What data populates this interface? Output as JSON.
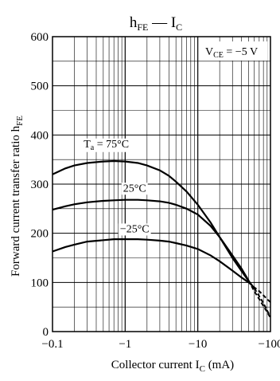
{
  "chart_data": {
    "type": "line",
    "title": {
      "main": "h",
      "main_sub": "FE",
      "dash": "—",
      "second": "I",
      "second_sub": "C"
    },
    "xlabel": {
      "prefix": "Collector current",
      "symbol": "I",
      "sub": "C",
      "unit": "(mA)"
    },
    "ylabel": {
      "main": "Forward current transfer ratio",
      "symbol": "h",
      "sub": "FE"
    },
    "x_scale": "log",
    "xlim": [
      0.1,
      100
    ],
    "ylim": [
      0,
      600
    ],
    "x_ticks": [
      {
        "value": 0.1,
        "label": "−0.1"
      },
      {
        "value": 1,
        "label": "−1"
      },
      {
        "value": 10,
        "label": "−10"
      },
      {
        "value": 100,
        "label": "−100"
      }
    ],
    "y_ticks": [
      {
        "value": 0,
        "label": "0"
      },
      {
        "value": 100,
        "label": "100"
      },
      {
        "value": 200,
        "label": "200"
      },
      {
        "value": 300,
        "label": "300"
      },
      {
        "value": 400,
        "label": "400"
      },
      {
        "value": 500,
        "label": "500"
      },
      {
        "value": 600,
        "label": "600"
      }
    ],
    "grid": true,
    "condition": {
      "symbol": "V",
      "sub": "CE",
      "value": "= −5 V"
    },
    "series": [
      {
        "name": "T_a = 75°C",
        "label": {
          "symbol": "T",
          "sub": "a",
          "value": "= 75°C"
        },
        "points": [
          [
            0.1,
            320
          ],
          [
            0.15,
            332
          ],
          [
            0.2,
            338
          ],
          [
            0.3,
            343
          ],
          [
            0.5,
            346
          ],
          [
            0.7,
            347
          ],
          [
            1,
            346
          ],
          [
            1.5,
            343
          ],
          [
            2,
            338
          ],
          [
            3,
            328
          ],
          [
            4,
            317
          ],
          [
            5,
            305
          ],
          [
            7,
            285
          ],
          [
            10,
            258
          ],
          [
            15,
            222
          ],
          [
            20,
            192
          ],
          [
            30,
            150
          ],
          [
            40,
            123
          ],
          [
            50,
            103
          ],
          [
            60,
            88
          ],
          [
            70,
            72
          ],
          [
            80,
            58
          ],
          [
            90,
            43
          ],
          [
            100,
            30
          ]
        ],
        "tail_dashed_from": 60
      },
      {
        "name": "25°C",
        "label": {
          "symbol": "",
          "sub": "",
          "value": "25°C"
        },
        "points": [
          [
            0.1,
            248
          ],
          [
            0.15,
            255
          ],
          [
            0.2,
            259
          ],
          [
            0.3,
            263
          ],
          [
            0.5,
            266
          ],
          [
            0.7,
            267
          ],
          [
            1,
            268
          ],
          [
            1.5,
            268
          ],
          [
            2,
            267
          ],
          [
            3,
            265
          ],
          [
            4,
            262
          ],
          [
            5,
            258
          ],
          [
            7,
            250
          ],
          [
            10,
            238
          ],
          [
            15,
            215
          ],
          [
            20,
            192
          ],
          [
            30,
            155
          ],
          [
            40,
            128
          ],
          [
            50,
            104
          ],
          [
            60,
            82
          ],
          [
            70,
            66
          ],
          [
            80,
            52
          ],
          [
            90,
            40
          ],
          [
            100,
            28
          ]
        ],
        "tail_dashed_from": 50
      },
      {
        "name": "−25°C",
        "label": {
          "symbol": "",
          "sub": "",
          "value": "−25°C"
        },
        "points": [
          [
            0.1,
            163
          ],
          [
            0.15,
            172
          ],
          [
            0.2,
            177
          ],
          [
            0.3,
            183
          ],
          [
            0.5,
            186
          ],
          [
            0.7,
            188
          ],
          [
            1,
            188
          ],
          [
            1.5,
            188
          ],
          [
            2,
            187
          ],
          [
            3,
            185
          ],
          [
            4,
            183
          ],
          [
            5,
            180
          ],
          [
            7,
            175
          ],
          [
            10,
            168
          ],
          [
            15,
            155
          ],
          [
            20,
            143
          ],
          [
            30,
            124
          ],
          [
            40,
            110
          ],
          [
            50,
            100
          ],
          [
            60,
            90
          ],
          [
            70,
            82
          ],
          [
            80,
            74
          ],
          [
            90,
            66
          ],
          [
            100,
            60
          ]
        ],
        "tail_dashed_from": 50
      }
    ]
  }
}
